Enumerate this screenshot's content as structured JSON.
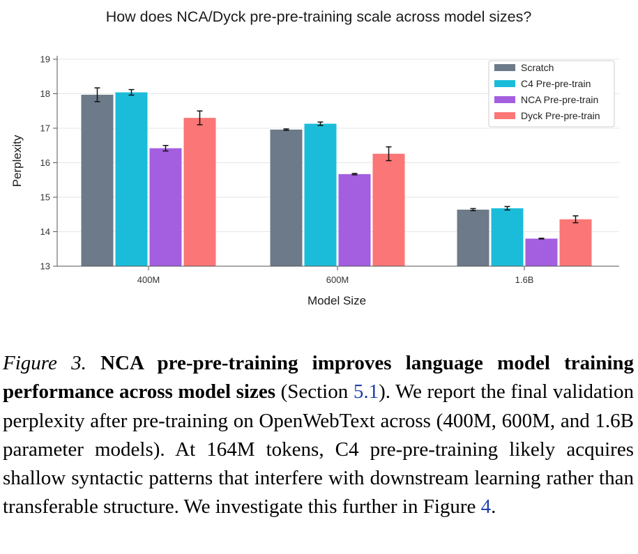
{
  "chart_data": {
    "type": "bar",
    "title": "How does NCA/Dyck pre-pre-training scale across model sizes?",
    "xlabel": "Model Size",
    "ylabel": "Perplexity",
    "ylim": [
      13,
      19
    ],
    "yticks": [
      13,
      14,
      15,
      16,
      17,
      18,
      19
    ],
    "grid": true,
    "legend_position": "top-right",
    "categories": [
      "400M",
      "600M",
      "1.6B"
    ],
    "series": [
      {
        "name": "Scratch",
        "color": "#6c7a89",
        "values": [
          17.97,
          16.96,
          14.64
        ],
        "errors": [
          0.2,
          0.02,
          0.03
        ]
      },
      {
        "name": "C4 Pre-pre-train",
        "color": "#1bbcd9",
        "values": [
          18.04,
          17.13,
          14.68
        ],
        "errors": [
          0.08,
          0.05,
          0.05
        ]
      },
      {
        "name": "NCA Pre-pre-train",
        "color": "#a35fe0",
        "values": [
          16.42,
          15.67,
          13.8
        ],
        "errors": [
          0.08,
          0.02,
          0.01
        ]
      },
      {
        "name": "Dyck Pre-pre-train",
        "color": "#fb7676",
        "values": [
          17.3,
          16.26,
          14.36
        ],
        "errors": [
          0.2,
          0.2,
          0.1
        ]
      }
    ]
  },
  "caption": {
    "label": "Figure 3.",
    "heading": "NCA pre-pre-training improves language model training performance across model sizes",
    "section_open": "(Section ",
    "section_ref": "5.1",
    "section_close": ").",
    "body": "We report the final validation perplexity after pre-training on OpenWebText across (400M, 600M, and 1.6B parameter models). At 164M tokens, C4 pre-pre-training likely acquires shallow syntactic patterns that interfere with downstream learning rather than transferable structure. We investigate this further in Figure ",
    "figure_ref": "4",
    "end": "."
  }
}
